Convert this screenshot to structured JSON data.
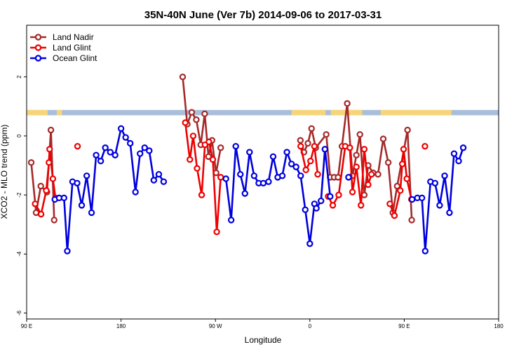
{
  "chart_data": {
    "type": "line",
    "title": "35N-40N June (Ver 7b)   2014-09-06 to 2017-03-31",
    "xlabel": "Longitude",
    "ylabel": "XCO2 - MLO trend (ppm)",
    "xlim": [
      90,
      450
    ],
    "ylim": [
      -6.2,
      3.75
    ],
    "xticks": [
      {
        "value": 90,
        "label": "90 E"
      },
      {
        "value": 162,
        "label": "180"
      },
      {
        "value": 234,
        "label": "90 W"
      },
      {
        "value": 306,
        "label": "0"
      },
      {
        "value": 378,
        "label": "90 E"
      },
      {
        "value": 450,
        "label": "180"
      }
    ],
    "yticks": [
      {
        "value": 2,
        "label": "2"
      },
      {
        "value": 0,
        "label": "0"
      },
      {
        "value": -2,
        "label": "-2"
      },
      {
        "value": -4,
        "label": "-4"
      },
      {
        "value": -6,
        "label": "-6"
      }
    ],
    "legend_position": "top-left",
    "land_strip": {
      "y_range": [
        0.7,
        0.88
      ],
      "ocean_color": "#a8bedb",
      "land_color": "#f6d57a"
    },
    "series": [
      {
        "name": "Land Nadir",
        "color": "#a52a2a",
        "segments": [
          [
            [
              93.5,
              -0.9
            ],
            [
              97.2,
              -2.6
            ],
            [
              100.8,
              -1.7
            ],
            [
              105.5,
              -1.9
            ],
            [
              108.5,
              0.2
            ],
            [
              111.0,
              -2.85
            ]
          ],
          [
            [
              209.0,
              2.0
            ],
            [
              212.5,
              0.4
            ],
            [
              215.9,
              0.8
            ],
            [
              219.4,
              0.55
            ],
            [
              222.8,
              -0.3
            ],
            [
              225.8,
              0.75
            ],
            [
              228.7,
              -0.7
            ],
            [
              231.4,
              -0.15
            ],
            [
              234.5,
              -1.25
            ],
            [
              238.0,
              -0.4
            ]
          ],
          [
            [
              298.8,
              -0.15
            ],
            [
              301.5,
              -0.55
            ],
            [
              304.5,
              -0.25
            ],
            [
              307.3,
              0.25
            ],
            [
              310.5,
              -0.4
            ],
            [
              318.5,
              0.05
            ],
            [
              321.5,
              -1.4
            ],
            [
              324.5,
              -1.4
            ],
            [
              327.5,
              -1.4
            ],
            [
              330.5,
              -0.35
            ],
            [
              334.5,
              1.1
            ],
            [
              338.5,
              -1.35
            ],
            [
              341.5,
              -0.65
            ],
            [
              344.2,
              0.05
            ],
            [
              347.5,
              -2.0
            ],
            [
              350.5,
              -1.0
            ],
            [
              354.3,
              -1.25
            ],
            [
              358.0,
              -1.3
            ],
            [
              362.0,
              -0.1
            ],
            [
              365.8,
              -0.9
            ],
            [
              369.3,
              -2.6
            ],
            [
              372.6,
              -1.7
            ],
            [
              380.5,
              0.2
            ],
            [
              383.7,
              -2.85
            ]
          ]
        ]
      },
      {
        "name": "Land Glint",
        "color": "#ee0000",
        "segments": [
          [
            [
              96.5,
              -2.3
            ],
            [
              101.0,
              -2.65
            ],
            [
              105.0,
              -1.85
            ],
            [
              107.0,
              -0.9
            ],
            [
              107.5,
              -0.45
            ],
            [
              110.0,
              -1.45
            ],
            [
              112.0,
              -2.1
            ]
          ],
          [
            [
              128.8,
              -0.35
            ]
          ],
          [
            [
              211.0,
              0.45
            ],
            [
              214.5,
              -0.8
            ],
            [
              217.0,
              0.0
            ],
            [
              220.0,
              -1.1
            ],
            [
              223.5,
              -2.0
            ],
            [
              226.0,
              -0.3
            ],
            [
              229.0,
              -0.2
            ],
            [
              232.0,
              -0.8
            ],
            [
              235.0,
              -3.25
            ],
            [
              238.0,
              -1.4
            ]
          ],
          [
            [
              299.0,
              -0.35
            ],
            [
              303.0,
              -1.15
            ],
            [
              306.5,
              -0.85
            ],
            [
              309.5,
              -0.35
            ],
            [
              312.0,
              -1.3
            ]
          ],
          [
            [
              320.0,
              -2.05
            ],
            [
              323.5,
              -2.35
            ],
            [
              328.0,
              -2.0
            ],
            [
              333.0,
              -0.35
            ],
            [
              336.5,
              -0.4
            ],
            [
              338.5,
              -1.9
            ],
            [
              341.5,
              -1.05
            ],
            [
              345.0,
              -2.35
            ],
            [
              347.5,
              -0.45
            ],
            [
              350.5,
              -1.65
            ],
            [
              353.0,
              -1.3
            ]
          ],
          [
            [
              367.0,
              -2.3
            ],
            [
              370.5,
              -2.7
            ],
            [
              375.0,
              -1.85
            ],
            [
              376.5,
              -0.95
            ],
            [
              377.5,
              -0.45
            ],
            [
              380.0,
              -1.45
            ],
            [
              383.5,
              -2.15
            ]
          ],
          [
            [
              393.8,
              -0.35
            ]
          ]
        ]
      },
      {
        "name": "Ocean Glint",
        "color": "#0000dd",
        "segments": [
          [
            [
              111.5,
              -2.15
            ],
            [
              114.8,
              -2.1
            ],
            [
              118.5,
              -2.1
            ],
            [
              121.0,
              -3.9
            ],
            [
              125.0,
              -1.55
            ],
            [
              128.5,
              -1.6
            ],
            [
              132.0,
              -2.35
            ],
            [
              135.8,
              -1.35
            ],
            [
              139.5,
              -2.6
            ],
            [
              143.0,
              -0.65
            ],
            [
              146.5,
              -0.85
            ],
            [
              150.0,
              -0.4
            ],
            [
              153.8,
              -0.55
            ],
            [
              157.5,
              -0.65
            ],
            [
              162.0,
              0.25
            ],
            [
              165.5,
              -0.05
            ],
            [
              169.0,
              -0.25
            ],
            [
              173.0,
              -1.9
            ],
            [
              176.5,
              -0.6
            ],
            [
              180.0,
              -0.4
            ],
            [
              183.5,
              -0.5
            ],
            [
              187.0,
              -1.5
            ],
            [
              190.8,
              -1.3
            ],
            [
              194.5,
              -1.55
            ]
          ],
          [
            [
              242.0,
              -1.45
            ],
            [
              246.0,
              -2.85
            ],
            [
              249.5,
              -0.35
            ],
            [
              253.0,
              -1.3
            ],
            [
              256.5,
              -1.95
            ],
            [
              260.0,
              -0.55
            ],
            [
              263.5,
              -1.35
            ],
            [
              267.0,
              -1.6
            ],
            [
              270.5,
              -1.6
            ],
            [
              274.5,
              -1.55
            ],
            [
              278.0,
              -0.7
            ],
            [
              281.5,
              -1.4
            ],
            [
              285.0,
              -1.35
            ],
            [
              288.5,
              -0.55
            ],
            [
              292.0,
              -0.95
            ],
            [
              295.5,
              -1.05
            ],
            [
              299.0,
              -1.35
            ],
            [
              302.5,
              -2.5
            ],
            [
              306.0,
              -3.65
            ],
            [
              309.5,
              -2.3
            ],
            [
              311.0,
              -2.45
            ],
            [
              314.5,
              -2.2
            ],
            [
              317.5,
              -0.45
            ],
            [
              321.5,
              -2.05
            ]
          ],
          [
            [
              335.5,
              -1.4
            ]
          ],
          [
            [
              384.0,
              -2.15
            ],
            [
              388.0,
              -2.1
            ],
            [
              391.5,
              -2.1
            ],
            [
              394.0,
              -3.9
            ],
            [
              398.0,
              -1.55
            ],
            [
              401.5,
              -1.6
            ],
            [
              405.0,
              -2.35
            ],
            [
              408.8,
              -1.35
            ],
            [
              412.5,
              -2.6
            ],
            [
              416.0,
              -0.6
            ],
            [
              419.5,
              -0.85
            ],
            [
              423.0,
              -0.4
            ]
          ]
        ]
      }
    ]
  }
}
